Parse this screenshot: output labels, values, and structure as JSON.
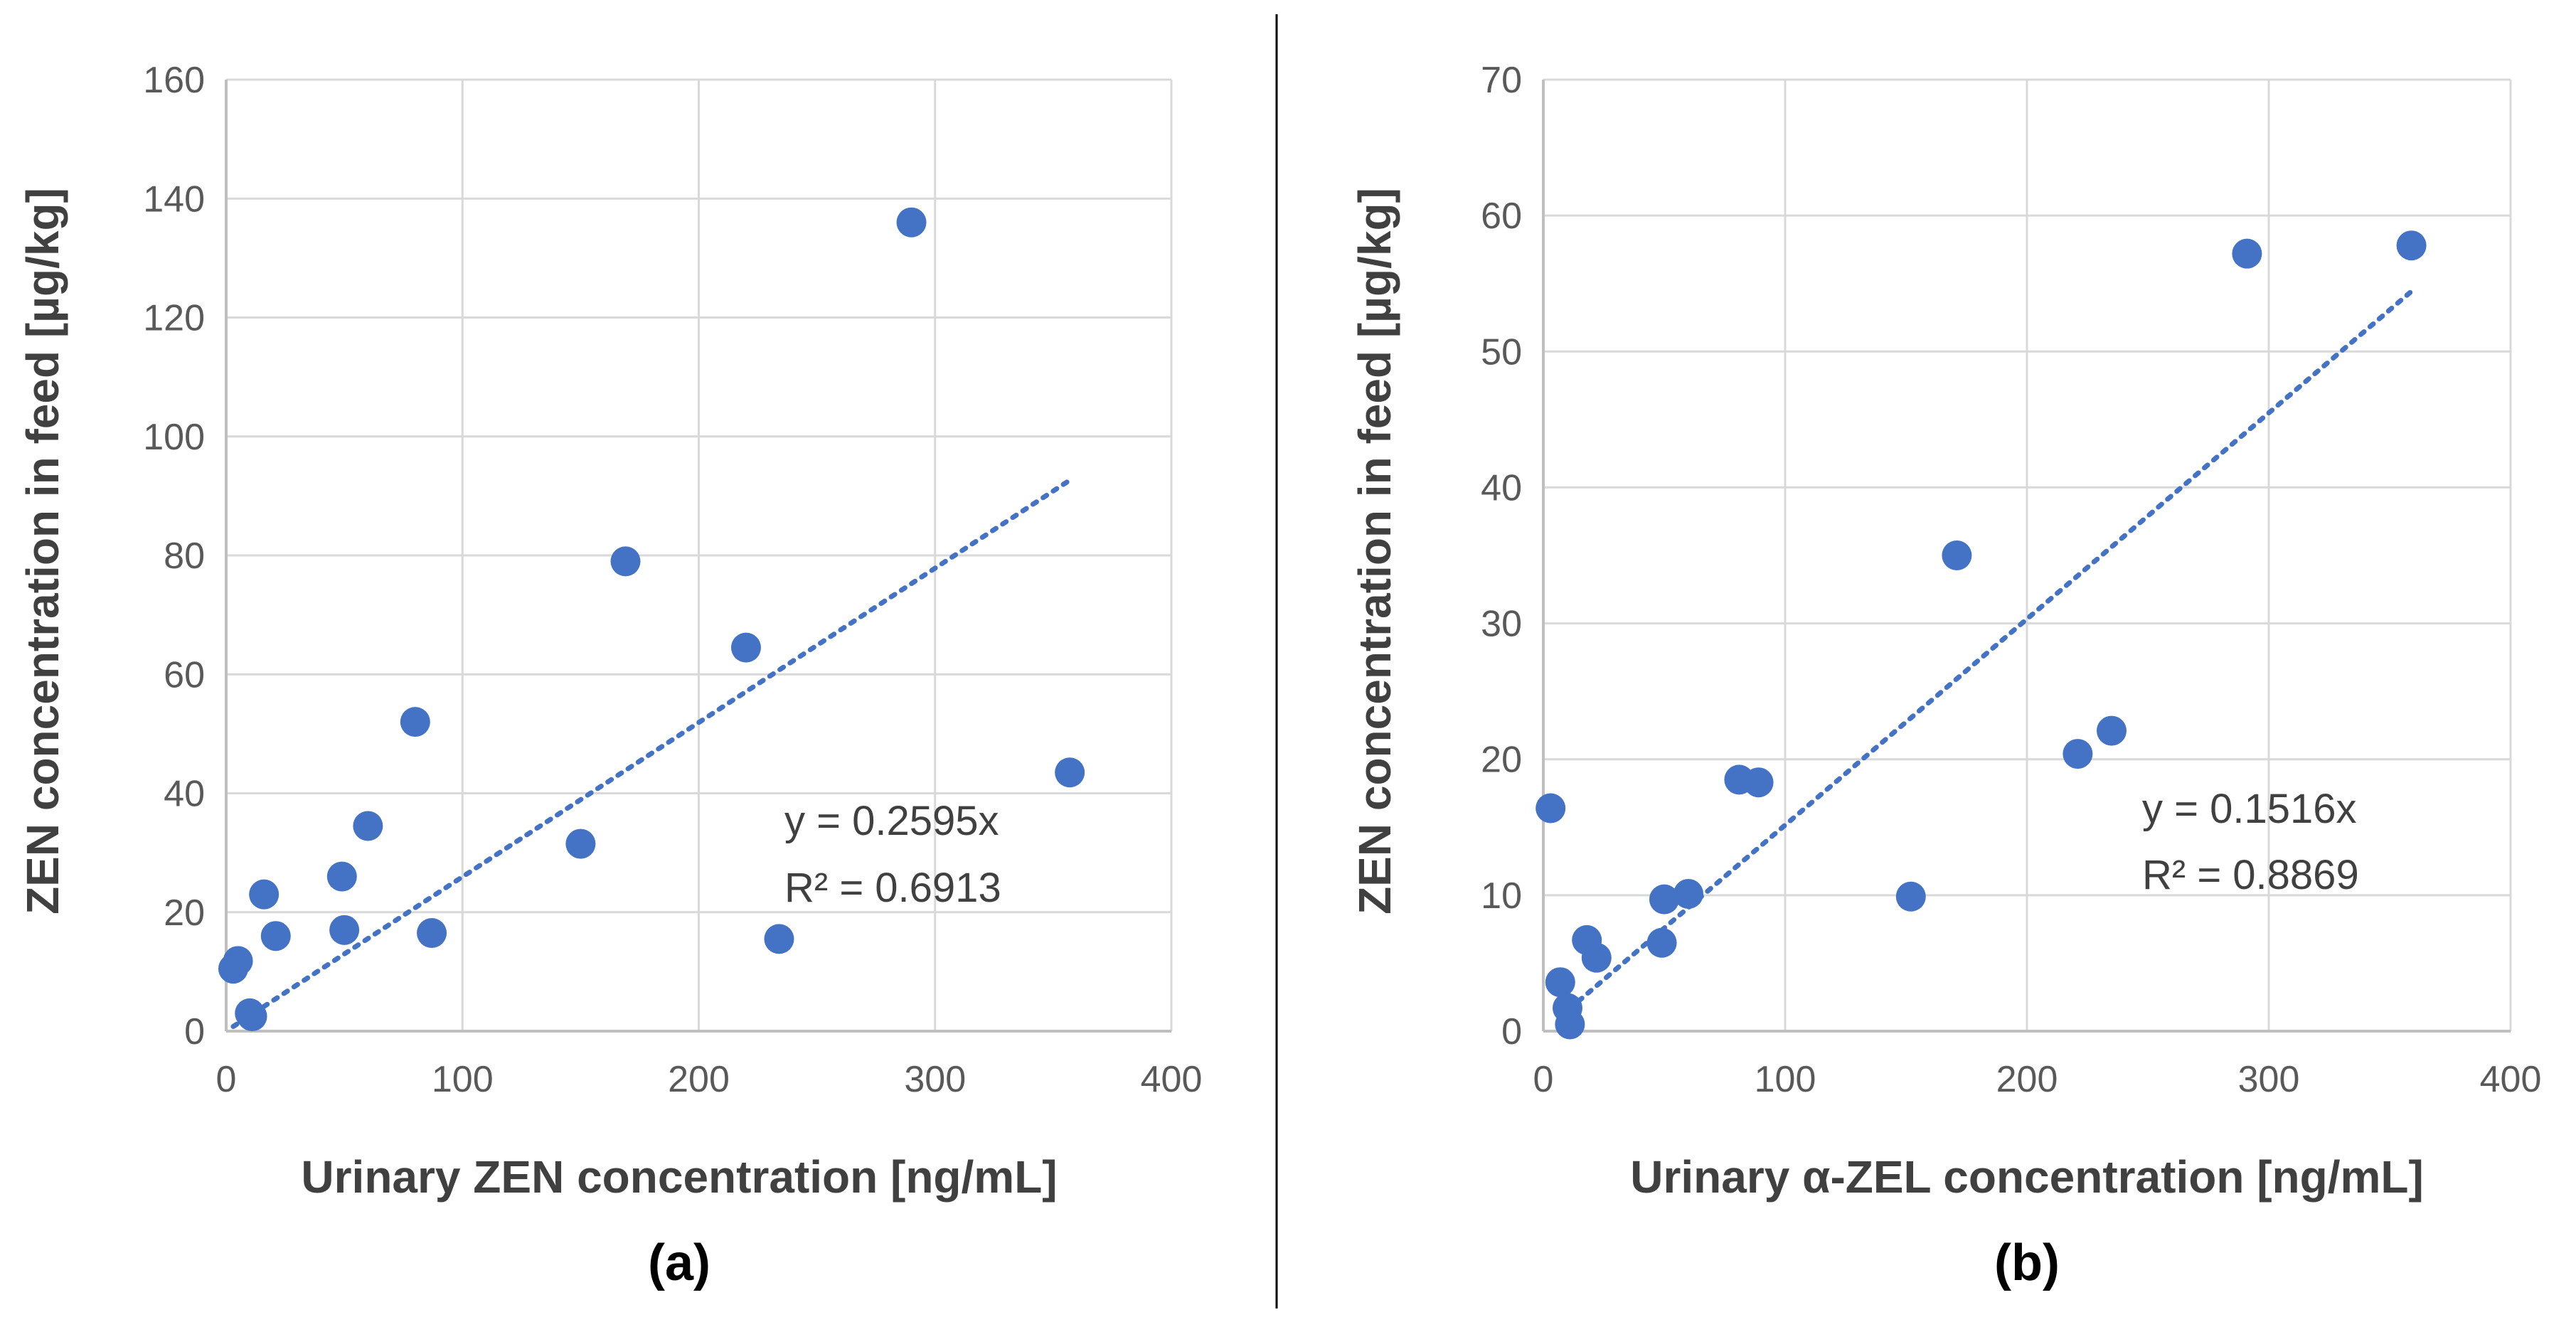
{
  "colors": {
    "marker": "#4472C4",
    "trendline": "#4472C4",
    "grid": "#D9D9D9",
    "axis": "#BFBFBF",
    "divider": "#000000"
  },
  "chart_data": [
    {
      "type": "scatter",
      "panel_label": "(a)",
      "xlabel": "Urinary ZEN concentration [ng/mL]",
      "ylabel": "ZEN concentration in feed [µg/kg]",
      "xlim": [
        0,
        400
      ],
      "ylim": [
        0,
        160
      ],
      "xticks": [
        "0",
        "100",
        "200",
        "300",
        "400"
      ],
      "yticks": [
        "0",
        "20",
        "40",
        "60",
        "80",
        "100",
        "120",
        "140",
        "160"
      ],
      "grid": true,
      "points": [
        {
          "x": 3,
          "y": 10.5
        },
        {
          "x": 5,
          "y": 11.8
        },
        {
          "x": 10,
          "y": 3
        },
        {
          "x": 11,
          "y": 2.5
        },
        {
          "x": 16,
          "y": 23
        },
        {
          "x": 21,
          "y": 16
        },
        {
          "x": 49,
          "y": 26
        },
        {
          "x": 50,
          "y": 17
        },
        {
          "x": 60,
          "y": 34.5
        },
        {
          "x": 80,
          "y": 52
        },
        {
          "x": 87,
          "y": 16.5
        },
        {
          "x": 150,
          "y": 31.5
        },
        {
          "x": 169,
          "y": 79
        },
        {
          "x": 220,
          "y": 64.5
        },
        {
          "x": 234,
          "y": 15.5
        },
        {
          "x": 290,
          "y": 136
        },
        {
          "x": 357,
          "y": 43.5
        }
      ],
      "trendline": {
        "slope": 0.2595,
        "x_range": [
          3,
          357
        ],
        "style": "dotted"
      },
      "equation": "y = 0.2595x",
      "r2": "R² = 0.6913"
    },
    {
      "type": "scatter",
      "panel_label": "(b)",
      "xlabel": "Urinary α-ZEL concentration [ng/mL]",
      "ylabel": "ZEN concentration in feed [µg/kg]",
      "xlim": [
        0,
        400
      ],
      "ylim": [
        0,
        70
      ],
      "xticks": [
        "0",
        "100",
        "200",
        "300",
        "400"
      ],
      "yticks": [
        "0",
        "10",
        "20",
        "30",
        "40",
        "50",
        "60",
        "70"
      ],
      "grid": true,
      "points": [
        {
          "x": 3,
          "y": 16.4
        },
        {
          "x": 7,
          "y": 3.6
        },
        {
          "x": 10,
          "y": 1.7
        },
        {
          "x": 11,
          "y": 0.5
        },
        {
          "x": 18,
          "y": 6.7
        },
        {
          "x": 22,
          "y": 5.4
        },
        {
          "x": 49,
          "y": 6.5
        },
        {
          "x": 50,
          "y": 9.7
        },
        {
          "x": 60,
          "y": 10.1
        },
        {
          "x": 81,
          "y": 18.5
        },
        {
          "x": 89,
          "y": 18.3
        },
        {
          "x": 152,
          "y": 9.9
        },
        {
          "x": 171,
          "y": 35
        },
        {
          "x": 221,
          "y": 20.4
        },
        {
          "x": 235,
          "y": 22.1
        },
        {
          "x": 291,
          "y": 57.2
        },
        {
          "x": 359,
          "y": 57.8
        }
      ],
      "trendline": {
        "slope": 0.1516,
        "x_range": [
          7,
          359
        ],
        "style": "dotted"
      },
      "equation": "y = 0.1516x",
      "r2": "R² = 0.8869"
    }
  ]
}
